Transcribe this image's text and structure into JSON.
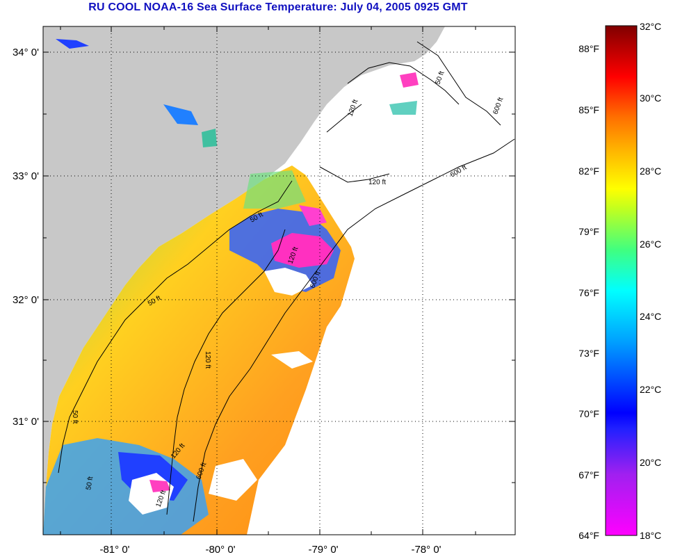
{
  "title": "RU COOL  NOAA-16  Sea Surface Temperature:  July 04, 2005 0925 GMT",
  "colors": {
    "title": "#1010c0",
    "land": "#c8c8c8",
    "nodata": "#ffffff"
  },
  "axes": {
    "lat_labels": [
      "34° 0'",
      "33° 0'",
      "32° 0'",
      "31° 0'"
    ],
    "lon_labels": [
      "-81° 0'",
      "-80° 0'",
      "-79° 0'",
      "-78° 0'"
    ]
  },
  "contours": [
    "50 ft",
    "120 ft",
    "600 ft",
    "50 ft",
    "120 ft",
    "600 ft",
    "50 ft",
    "120 ft",
    "600 ft",
    "50 ft",
    "120 ft",
    "600 ft"
  ],
  "colorbar": {
    "fahrenheit": [
      "88°F",
      "85°F",
      "82°F",
      "79°F",
      "76°F",
      "73°F",
      "70°F",
      "67°F",
      "64°F"
    ],
    "celsius": [
      "32°C",
      "30°C",
      "28°C",
      "26°C",
      "24°C",
      "22°C",
      "20°C",
      "18°C"
    ]
  }
}
